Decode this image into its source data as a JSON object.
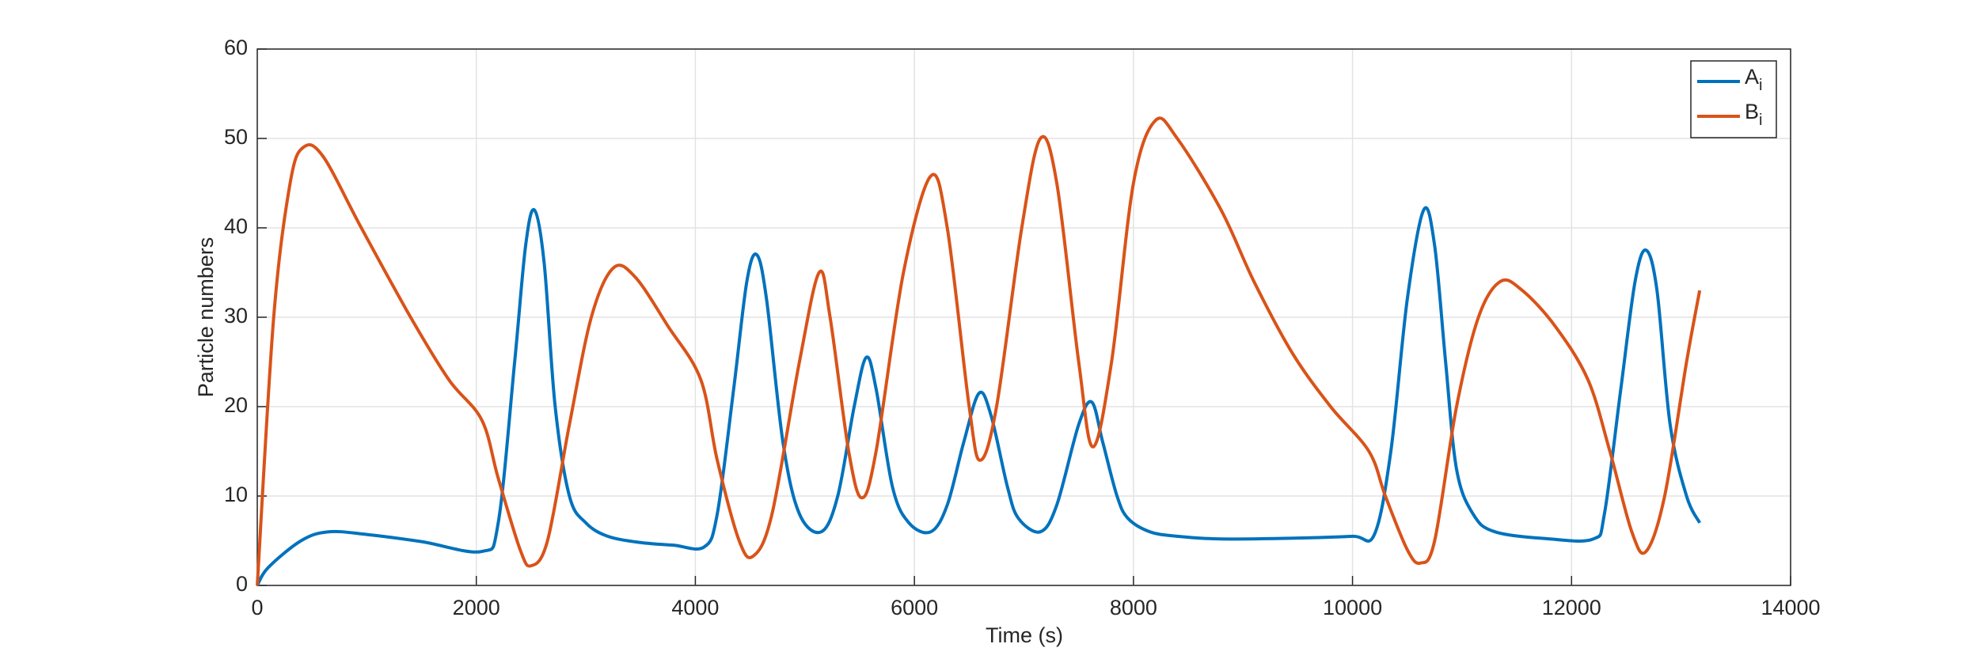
{
  "chart_data": {
    "type": "line",
    "xlabel": "Time (s)",
    "ylabel": "Particle numbers",
    "xlim": [
      0,
      14000
    ],
    "xticks": [
      0,
      2000,
      4000,
      6000,
      8000,
      10000,
      12000,
      14000
    ],
    "ylim": [
      0,
      60
    ],
    "yticks": [
      0,
      10,
      20,
      30,
      40,
      50,
      60
    ],
    "grid": true,
    "legend_location": "northeast",
    "series": [
      {
        "name": "Ai",
        "color": "#0072bd",
        "x": [
          0,
          100,
          400,
          650,
          1000,
          1500,
          2050,
          2200,
          2350,
          2450,
          2530,
          2620,
          2720,
          2850,
          3000,
          3200,
          3500,
          3800,
          4080,
          4200,
          4350,
          4470,
          4560,
          4650,
          4800,
          4950,
          5150,
          5300,
          5450,
          5560,
          5650,
          5800,
          5950,
          6150,
          6300,
          6450,
          6590,
          6700,
          6850,
          6950,
          7150,
          7300,
          7500,
          7620,
          7720,
          7850,
          7950,
          8150,
          8400,
          8800,
          9500,
          10000,
          10200,
          10350,
          10500,
          10650,
          10750,
          10850,
          10950,
          11100,
          11300,
          11800,
          12200,
          12300,
          12450,
          12580,
          12680,
          12780,
          12900,
          13050,
          13170
        ],
        "values": [
          0,
          2,
          5,
          6,
          5.7,
          4.9,
          3.8,
          7,
          25,
          38,
          42,
          36,
          20,
          10,
          7,
          5.5,
          4.8,
          4.5,
          4.3,
          8,
          22,
          34,
          37,
          32,
          16,
          8,
          6,
          10,
          20,
          25.5,
          22,
          11,
          7,
          6,
          9,
          16,
          21.5,
          19,
          11,
          7.5,
          6,
          9,
          18,
          20.5,
          16,
          10,
          7.5,
          6,
          5.5,
          5.2,
          5.3,
          5.5,
          5.7,
          15,
          32,
          42,
          38,
          25,
          13,
          8,
          6,
          5.2,
          5.2,
          8,
          22,
          34,
          37.5,
          33,
          18,
          10,
          7
        ]
      },
      {
        "name": "Bi",
        "color": "#d95319",
        "x": [
          0,
          150,
          300,
          420,
          600,
          950,
          1400,
          1750,
          2050,
          2200,
          2400,
          2500,
          2650,
          2850,
          3050,
          3250,
          3450,
          3750,
          4050,
          4200,
          4400,
          4530,
          4700,
          4950,
          5130,
          5230,
          5400,
          5520,
          5650,
          5900,
          6150,
          6300,
          6500,
          6600,
          6750,
          6980,
          7150,
          7300,
          7500,
          7630,
          7800,
          8000,
          8200,
          8400,
          8800,
          9100,
          9450,
          9800,
          10150,
          10300,
          10500,
          10620,
          10750,
          10950,
          11150,
          11350,
          11550,
          11850,
          12150,
          12350,
          12550,
          12680,
          12850,
          13050,
          13170
        ],
        "values": [
          0,
          30,
          45,
          49,
          48,
          40,
          30,
          23,
          18.5,
          12,
          4,
          2.2,
          5,
          18,
          30,
          35.5,
          34.5,
          29,
          23,
          14,
          5,
          3.3,
          8,
          25,
          35,
          30,
          15,
          9.8,
          15,
          35,
          45.8,
          40,
          20,
          14,
          20,
          40,
          50,
          45,
          25,
          15.5,
          25,
          45,
          52,
          50,
          42,
          34,
          26,
          20,
          15,
          10,
          4,
          2.5,
          5,
          20,
          30,
          34,
          33,
          29,
          23,
          15,
          6,
          3.8,
          10,
          25,
          33
        ]
      }
    ]
  }
}
